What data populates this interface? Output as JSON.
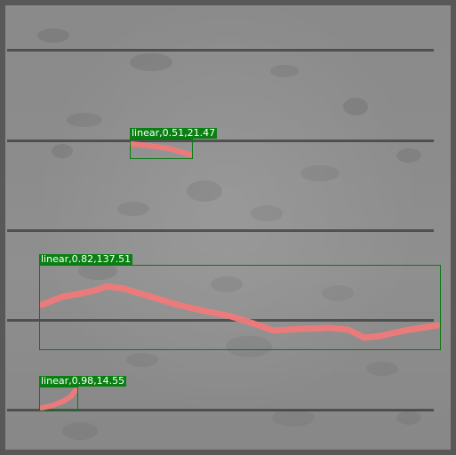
{
  "image": {
    "background_color": "#8b8b8b",
    "busbar_color": "#3b3b3b",
    "defect_color": "#f07a7a"
  },
  "detections": [
    {
      "label": "linear",
      "confidence": "0.51",
      "length": "21.47",
      "text": "linear,0.51,21.47"
    },
    {
      "label": "linear",
      "confidence": "0.82",
      "length": "137.51",
      "text": "linear,0.82,137.51"
    },
    {
      "label": "linear",
      "confidence": "0.98",
      "length": "14.55",
      "text": "linear,0.98,14.55"
    }
  ]
}
